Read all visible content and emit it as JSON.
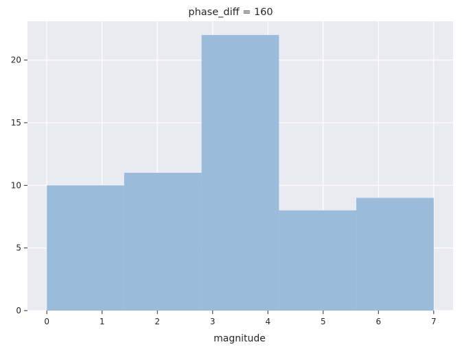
{
  "chart_data": {
    "type": "bar",
    "title": "phase_diff = 160",
    "xlabel": "magnitude",
    "ylabel": "",
    "bins": [
      {
        "x0": 0.0,
        "x1": 1.4,
        "value": 10
      },
      {
        "x0": 1.4,
        "x1": 2.8,
        "value": 11
      },
      {
        "x0": 2.8,
        "x1": 4.2,
        "value": 22
      },
      {
        "x0": 4.2,
        "x1": 5.6,
        "value": 8
      },
      {
        "x0": 5.6,
        "x1": 7.0,
        "value": 9
      }
    ],
    "xlim": [
      -0.35,
      7.35
    ],
    "ylim": [
      0,
      23.1
    ],
    "xticks": [
      0,
      1,
      2,
      3,
      4,
      5,
      6,
      7
    ],
    "xtick_labels": [
      "0",
      "1",
      "2",
      "3",
      "4",
      "5",
      "6",
      "7"
    ],
    "yticks": [
      0,
      5,
      10,
      15,
      20
    ],
    "ytick_labels": [
      "0",
      "5",
      "10",
      "15",
      "20"
    ],
    "grid": true,
    "colors": {
      "background": "#eaeaf2",
      "grid": "#ffffff",
      "bar": "#98bad9",
      "tick": "#262626"
    }
  }
}
